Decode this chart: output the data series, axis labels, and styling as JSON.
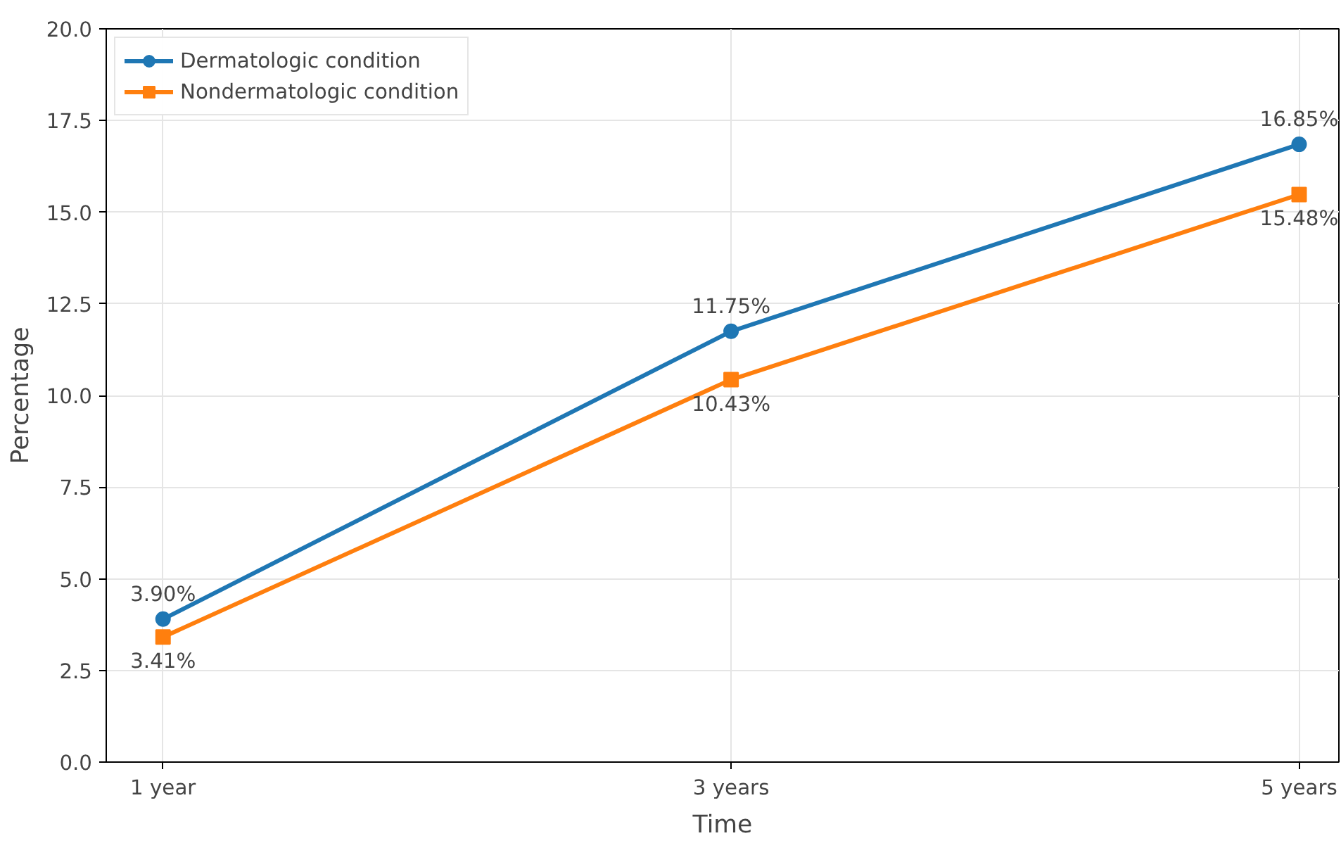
{
  "chart_data": {
    "type": "line",
    "xlabel": "Time",
    "ylabel": "Percentage",
    "categories": [
      "1 year",
      "3 years",
      "5 years"
    ],
    "series": [
      {
        "name": "Dermatologic condition",
        "color": "#1f77b4",
        "marker": "circle",
        "values": [
          3.9,
          11.75,
          16.85
        ],
        "value_labels": [
          "3.90%",
          "11.75%",
          "16.85%"
        ]
      },
      {
        "name": "Nondermatologic condition",
        "color": "#ff7f0e",
        "marker": "square",
        "values": [
          3.41,
          10.43,
          15.48
        ],
        "value_labels": [
          "3.41%",
          "10.43%",
          "15.48%"
        ]
      }
    ],
    "ylim": [
      0,
      20
    ],
    "yticks": [
      {
        "value": 0,
        "label": "0.0"
      },
      2.5,
      {
        "value": 5,
        "label": "5.0"
      },
      7.5,
      {
        "value": 10,
        "label": "10.0"
      },
      12.5,
      {
        "value": 15,
        "label": "15.0"
      },
      17.5,
      {
        "value": 20,
        "label": "20.0"
      }
    ],
    "grid": true,
    "legend": "top left",
    "line_style": "solid"
  }
}
